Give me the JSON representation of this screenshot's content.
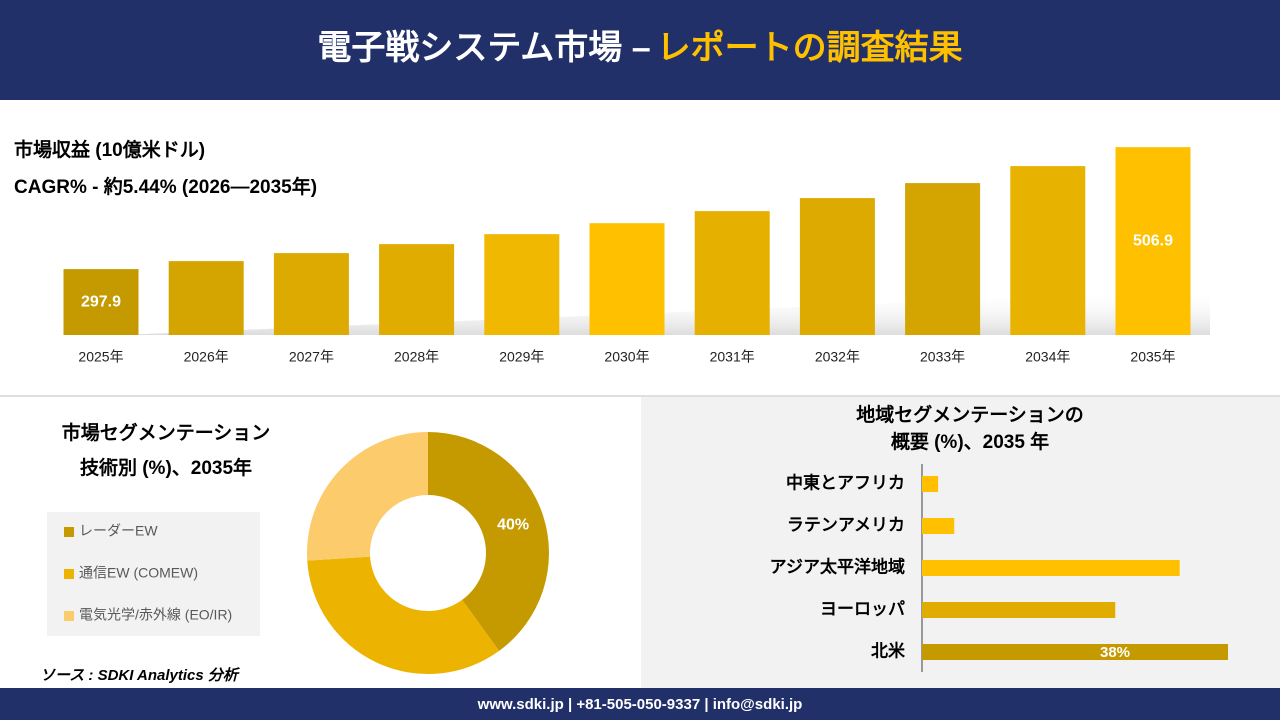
{
  "header": {
    "title": "電子戦システム市場 –",
    "title_highlight": "レポートの調査結果"
  },
  "chart_data": [
    {
      "type": "bar",
      "title": "市場収益 (10億米ドル)",
      "subtitle": "CAGR% - 約5.44% (2026—2035年)",
      "categories": [
        "2025年",
        "2026年",
        "2027年",
        "2028年",
        "2029年",
        "2030年",
        "2031年",
        "2032年",
        "2033年",
        "2034年",
        "2035年"
      ],
      "values": [
        297.9,
        311.6,
        325.3,
        340.7,
        357.8,
        376.6,
        397.3,
        419.6,
        445.3,
        474.4,
        506.9
      ],
      "value_labels": [
        "297.9",
        null,
        null,
        null,
        null,
        null,
        null,
        null,
        null,
        null,
        "506.9"
      ],
      "colors": [
        "#c49a00",
        "#d4a500",
        "#dcaa00",
        "#e0ac00",
        "#f0b800",
        "#ffc000",
        "#e6b000",
        "#dcaa00",
        "#d4a500",
        "#e8b200",
        "#ffc000"
      ],
      "ylim": [
        185,
        520
      ]
    },
    {
      "type": "donut",
      "title": [
        "市場セグメンテーション",
        "技術別 (%)、2035年"
      ],
      "categories": [
        "レーダーEW",
        "通信EW (COMEW)",
        "電気光学/赤外線 (EO/IR)"
      ],
      "values": [
        40,
        34,
        26
      ],
      "value_labels": [
        "40%",
        null,
        null
      ],
      "colors": [
        "#c49a00",
        "#ecb400",
        "#fccb6b"
      ]
    },
    {
      "type": "barh",
      "title": [
        "地域セグメンテーションの",
        "概要 (%)、2035 年"
      ],
      "categories": [
        "中東とアフリカ",
        "ラテンアメリカ",
        "アジア太平洋地域",
        "ヨーロッパ",
        "北米"
      ],
      "values": [
        2,
        4,
        32,
        24,
        38
      ],
      "value_labels": [
        null,
        null,
        null,
        null,
        "38%"
      ],
      "colors": [
        "#ffc000",
        "#ffc000",
        "#ffc000",
        "#e0ac00",
        "#c49a00"
      ],
      "xlim": [
        0,
        38
      ]
    }
  ],
  "source": "ソース : SDKI Analytics 分析",
  "footer": "www.sdki.jp | +81-505-050-9337 | info@sdki.jp"
}
